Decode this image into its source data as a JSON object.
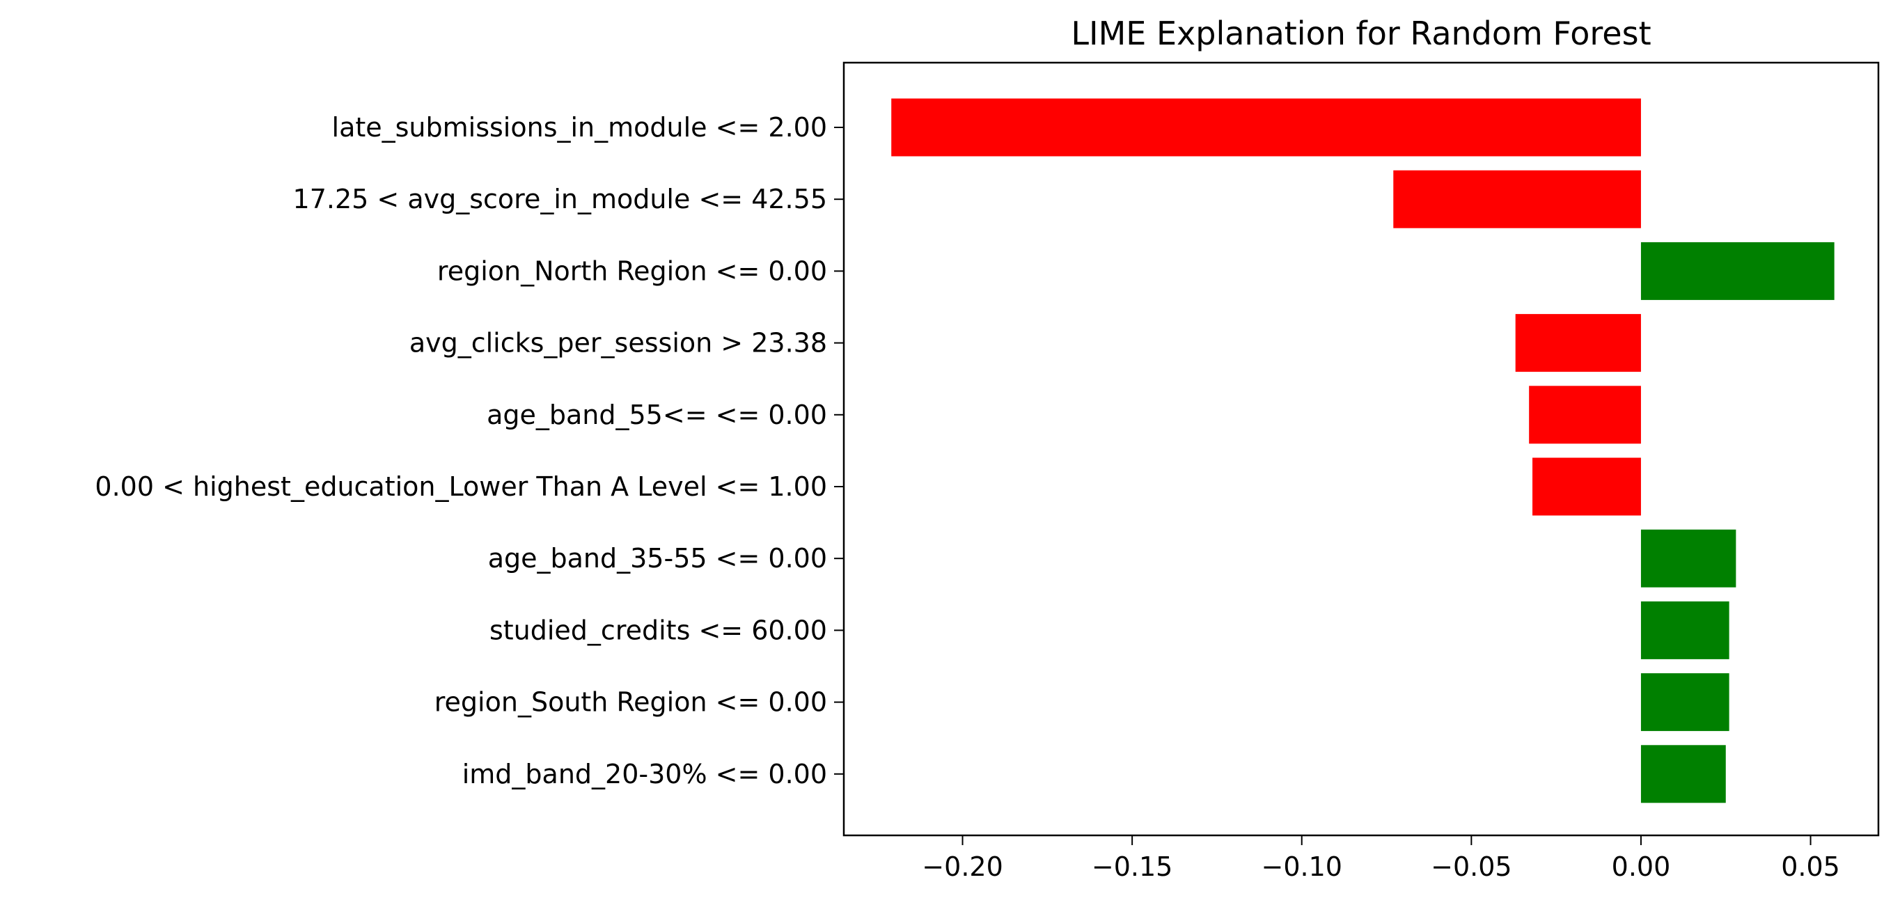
{
  "chart_data": {
    "type": "bar",
    "orientation": "horizontal",
    "title": "LIME Explanation for Random Forest",
    "xlabel": "",
    "ylabel": "",
    "xlim": [
      -0.235,
      0.07
    ],
    "grid": false,
    "x_ticks": [
      {
        "value": -0.2,
        "label": "−0.20"
      },
      {
        "value": -0.15,
        "label": "−0.15"
      },
      {
        "value": -0.1,
        "label": "−0.10"
      },
      {
        "value": -0.05,
        "label": "−0.05"
      },
      {
        "value": 0.0,
        "label": "0.00"
      },
      {
        "value": 0.05,
        "label": "0.05"
      }
    ],
    "categories": [
      "late_submissions_in_module <= 2.00",
      "17.25 < avg_score_in_module <= 42.55",
      "region_North Region <= 0.00",
      "avg_clicks_per_session > 23.38",
      "age_band_55<= <= 0.00",
      "0.00 < highest_education_Lower Than A Level <= 1.00",
      "age_band_35-55 <= 0.00",
      "studied_credits <= 60.00",
      "region_South Region <= 0.00",
      "imd_band_20-30% <= 0.00"
    ],
    "values": [
      -0.221,
      -0.073,
      0.057,
      -0.037,
      -0.033,
      -0.032,
      0.028,
      0.026,
      0.026,
      0.025
    ],
    "colors": {
      "negative": "#ff0000",
      "positive": "#008000"
    }
  }
}
